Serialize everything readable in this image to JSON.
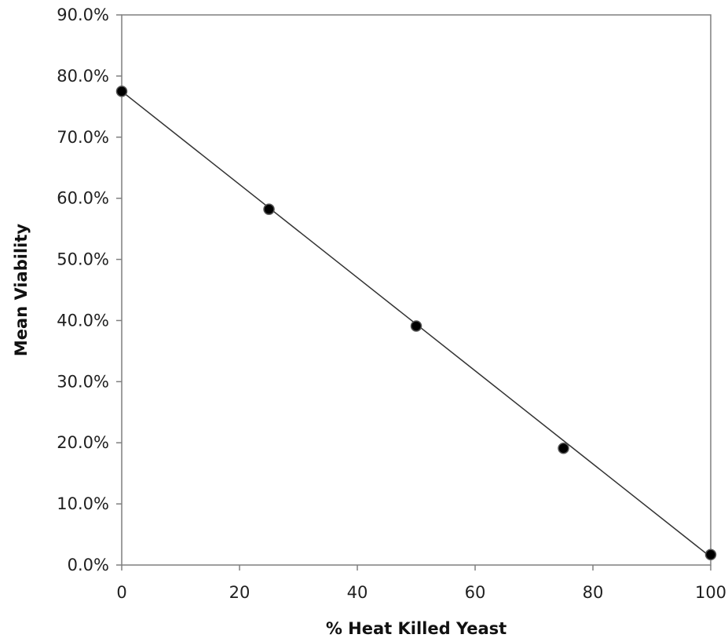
{
  "chart_data": {
    "type": "scatter",
    "title": "",
    "xlabel": "% Heat Killed Yeast",
    "ylabel": "Mean Viability",
    "xlim": [
      0,
      100
    ],
    "ylim": [
      0,
      90
    ],
    "x_ticks": [
      0,
      20,
      40,
      60,
      80,
      100
    ],
    "x_tick_labels": [
      "0",
      "20",
      "40",
      "60",
      "80",
      "100"
    ],
    "y_ticks": [
      0,
      10,
      20,
      30,
      40,
      50,
      60,
      70,
      80,
      90
    ],
    "y_tick_labels": [
      "0.0%",
      "10.0%",
      "20.0%",
      "30.0%",
      "40.0%",
      "50.0%",
      "60.0%",
      "70.0%",
      "80.0%",
      "90.0%"
    ],
    "grid": false,
    "legend": "none",
    "series": [
      {
        "x": [
          0,
          25,
          50,
          75,
          100
        ],
        "y": [
          77.5,
          58.2,
          39.1,
          19.1,
          1.7
        ],
        "color": "#000000",
        "marker": "circle"
      }
    ],
    "trendline": {
      "type": "linear",
      "x": [
        0,
        100
      ],
      "y": [
        77.5,
        1.3
      ],
      "color": "#333333"
    }
  }
}
